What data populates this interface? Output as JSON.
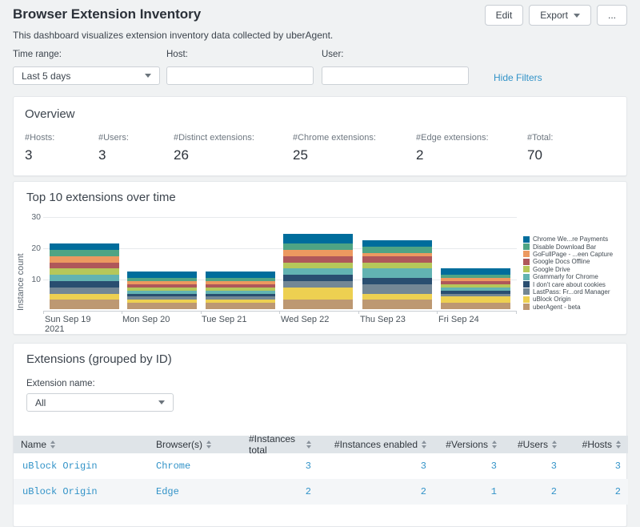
{
  "header": {
    "title": "Browser Extension Inventory",
    "subtitle": "This dashboard visualizes extension inventory data collected by uberAgent.",
    "buttons": {
      "edit": "Edit",
      "export": "Export",
      "more": "..."
    }
  },
  "filters": {
    "time_range": {
      "label": "Time range:",
      "value": "Last 5 days"
    },
    "host": {
      "label": "Host:",
      "value": ""
    },
    "user": {
      "label": "User:",
      "value": ""
    },
    "hide_filters": "Hide Filters"
  },
  "overview": {
    "title": "Overview",
    "stats": [
      {
        "label": "#Hosts:",
        "value": "3"
      },
      {
        "label": "#Users:",
        "value": "3"
      },
      {
        "label": "#Distinct extensions:",
        "value": "26"
      },
      {
        "label": "#Chrome extensions:",
        "value": "25"
      },
      {
        "label": "#Edge extensions:",
        "value": "2"
      },
      {
        "label": "#Total:",
        "value": "70"
      }
    ]
  },
  "chart_panel": {
    "title": "Top 10 extensions over time"
  },
  "chart_data": {
    "type": "bar",
    "stacked": true,
    "title": "Top 10 extensions over time",
    "xlabel": "",
    "ylabel": "Instance count",
    "ylim": [
      0,
      30
    ],
    "yticks": [
      10,
      20,
      30
    ],
    "grid": true,
    "legend_position": "right",
    "categories": [
      "Sun Sep 19",
      "Mon Sep 20",
      "Tue Sep 21",
      "Wed Sep 22",
      "Thu Sep 23",
      "Fri Sep 24"
    ],
    "x_sublabels": [
      "2021",
      "",
      "",
      "",
      "",
      ""
    ],
    "series": [
      {
        "name": "Chrome We...re Payments",
        "color": "#006d9c",
        "values": [
          2,
          2,
          2,
          3,
          2,
          2
        ]
      },
      {
        "name": "Disable Download Bar",
        "color": "#4fa484",
        "values": [
          2,
          1,
          1,
          2,
          2,
          1
        ]
      },
      {
        "name": "GoFullPage - ...een Capture",
        "color": "#ec9960",
        "values": [
          2,
          1,
          1,
          2,
          1,
          1
        ]
      },
      {
        "name": "Google Docs Offline",
        "color": "#af575a",
        "values": [
          2,
          1,
          1,
          2,
          2,
          1
        ]
      },
      {
        "name": "Google Drive",
        "color": "#b6c75a",
        "values": [
          2,
          1,
          1,
          2,
          2,
          1
        ]
      },
      {
        "name": "Grammarly for Chrome",
        "color": "#62b3b2",
        "values": [
          2,
          1,
          1,
          2,
          3,
          1
        ]
      },
      {
        "name": "I don't care about cookies",
        "color": "#294e70",
        "values": [
          2,
          1,
          1,
          2,
          2,
          1
        ]
      },
      {
        "name": "LastPass: Fr...ord Manager",
        "color": "#738795",
        "values": [
          2,
          1,
          1,
          2,
          3,
          1
        ]
      },
      {
        "name": "uBlock Origin",
        "color": "#edd051",
        "values": [
          2,
          1,
          1,
          4,
          2,
          2
        ]
      },
      {
        "name": "uberAgent - beta",
        "color": "#bd9872",
        "values": [
          3,
          2,
          2,
          3,
          3,
          2
        ]
      }
    ],
    "totals": [
      21,
      12,
      12,
      24,
      22,
      13
    ]
  },
  "extensions_panel": {
    "title": "Extensions (grouped by ID)",
    "extension_name": {
      "label": "Extension name:",
      "value": "All"
    },
    "table": {
      "columns": [
        {
          "label": "Name",
          "align": "left"
        },
        {
          "label": "Browser(s)",
          "align": "left"
        },
        {
          "label": "#Instances total",
          "align": "right"
        },
        {
          "label": "#Instances enabled",
          "align": "right"
        },
        {
          "label": "#Versions",
          "align": "right"
        },
        {
          "label": "#Users",
          "align": "right"
        },
        {
          "label": "#Hosts",
          "align": "right"
        }
      ],
      "rows": [
        [
          "uBlock Origin",
          "Chrome",
          "3",
          "3",
          "3",
          "3",
          "3"
        ],
        [
          "uBlock Origin",
          "Edge",
          "2",
          "2",
          "1",
          "2",
          "2"
        ]
      ]
    }
  },
  "colors": {
    "link_blue": "#3293c8",
    "table_header_bg": "#dfe4e8",
    "page_bg": "#f0f2f3"
  }
}
